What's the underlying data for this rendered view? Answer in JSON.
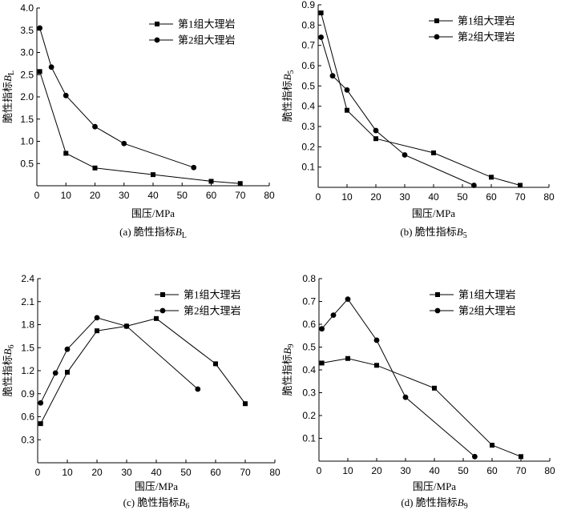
{
  "chart_data": [
    {
      "type": "line",
      "panel": "a",
      "caption_prefix": "(a) 脆性指标",
      "caption_symbol": "B",
      "caption_sub": "L",
      "xlabel": "围压/MPa",
      "ylabel_prefix": "脆性指标",
      "ylabel_symbol": "B",
      "ylabel_sub": "L",
      "xlim": [
        0,
        80
      ],
      "ylim": [
        0,
        4.0
      ],
      "xticks": [
        "0",
        "10",
        "20",
        "30",
        "40",
        "50",
        "60",
        "70",
        "80"
      ],
      "yticks": [
        "0.5",
        "1.0",
        "1.5",
        "2.0",
        "2.5",
        "3.0",
        "3.5",
        "4.0"
      ],
      "legend_position": "top-right",
      "series": [
        {
          "name": "第1组大理岩",
          "marker": "square",
          "x": [
            1,
            10,
            20,
            40,
            60,
            70
          ],
          "y": [
            2.57,
            0.73,
            0.4,
            0.25,
            0.1,
            0.05
          ]
        },
        {
          "name": "第2组大理岩",
          "marker": "circle",
          "x": [
            1,
            5,
            10,
            20,
            30,
            54
          ],
          "y": [
            3.55,
            2.67,
            2.03,
            1.33,
            0.95,
            0.41
          ]
        }
      ]
    },
    {
      "type": "line",
      "panel": "b",
      "caption_prefix": "(b) 脆性指标",
      "caption_symbol": "B",
      "caption_sub": "5",
      "xlabel": "围压/MPa",
      "ylabel_prefix": "脆性指标",
      "ylabel_symbol": "B",
      "ylabel_sub": "5",
      "xlim": [
        0,
        80
      ],
      "ylim": [
        0,
        0.9
      ],
      "xticks": [
        "0",
        "10",
        "20",
        "30",
        "40",
        "50",
        "60",
        "70",
        "80"
      ],
      "yticks": [
        "0.1",
        "0.2",
        "0.3",
        "0.4",
        "0.5",
        "0.6",
        "0.7",
        "0.8",
        "0.9"
      ],
      "legend_position": "top-right",
      "series": [
        {
          "name": "第1组大理岩",
          "marker": "square",
          "x": [
            1,
            10,
            20,
            40,
            60,
            70
          ],
          "y": [
            0.86,
            0.38,
            0.24,
            0.17,
            0.05,
            0.01
          ]
        },
        {
          "name": "第2组大理岩",
          "marker": "circle",
          "x": [
            1,
            5,
            10,
            20,
            30,
            54
          ],
          "y": [
            0.74,
            0.55,
            0.48,
            0.28,
            0.16,
            0.01
          ]
        }
      ]
    },
    {
      "type": "line",
      "panel": "c",
      "caption_prefix": "(c) 脆性指标",
      "caption_symbol": "B",
      "caption_sub": "6",
      "xlabel": "围压/MPa",
      "ylabel_prefix": "脆性指标",
      "ylabel_symbol": "B",
      "ylabel_sub": "6",
      "xlim": [
        0,
        80
      ],
      "ylim": [
        0,
        2.4
      ],
      "xticks": [
        "0",
        "10",
        "20",
        "30",
        "40",
        "50",
        "60",
        "70",
        "80"
      ],
      "yticks": [
        "0.3",
        "0.6",
        "0.9",
        "1.2",
        "1.5",
        "1.8",
        "2.1",
        "2.4"
      ],
      "legend_position": "top-right",
      "series": [
        {
          "name": "第1组大理岩",
          "marker": "square",
          "x": [
            1,
            10,
            20,
            30,
            40,
            60,
            70
          ],
          "y": [
            0.51,
            1.18,
            1.72,
            1.78,
            1.88,
            1.29,
            0.77
          ]
        },
        {
          "name": "第2组大理岩",
          "marker": "circle",
          "x": [
            1,
            6,
            10,
            20,
            30,
            54
          ],
          "y": [
            0.78,
            1.17,
            1.48,
            1.89,
            1.78,
            0.96
          ]
        }
      ]
    },
    {
      "type": "line",
      "panel": "d",
      "caption_prefix": "(d) 脆性指标",
      "caption_symbol": "B",
      "caption_sub": "9",
      "xlabel": "围压/MPa",
      "ylabel_prefix": "脆性指标",
      "ylabel_symbol": "B",
      "ylabel_sub": "9",
      "xlim": [
        0,
        80
      ],
      "ylim": [
        0,
        0.8
      ],
      "xticks": [
        "0",
        "10",
        "20",
        "30",
        "40",
        "50",
        "60",
        "70",
        "80"
      ],
      "yticks": [
        "0.1",
        "0.2",
        "0.3",
        "0.4",
        "0.5",
        "0.6",
        "0.7",
        "0.8"
      ],
      "legend_position": "top-right",
      "series": [
        {
          "name": "第1组大理岩",
          "marker": "square",
          "x": [
            1,
            10,
            20,
            40,
            60,
            70
          ],
          "y": [
            0.43,
            0.45,
            0.42,
            0.32,
            0.07,
            0.02
          ]
        },
        {
          "name": "第2组大理岩",
          "marker": "circle",
          "x": [
            1,
            5,
            10,
            20,
            30,
            54
          ],
          "y": [
            0.58,
            0.64,
            0.71,
            0.53,
            0.28,
            0.02
          ]
        }
      ]
    }
  ]
}
